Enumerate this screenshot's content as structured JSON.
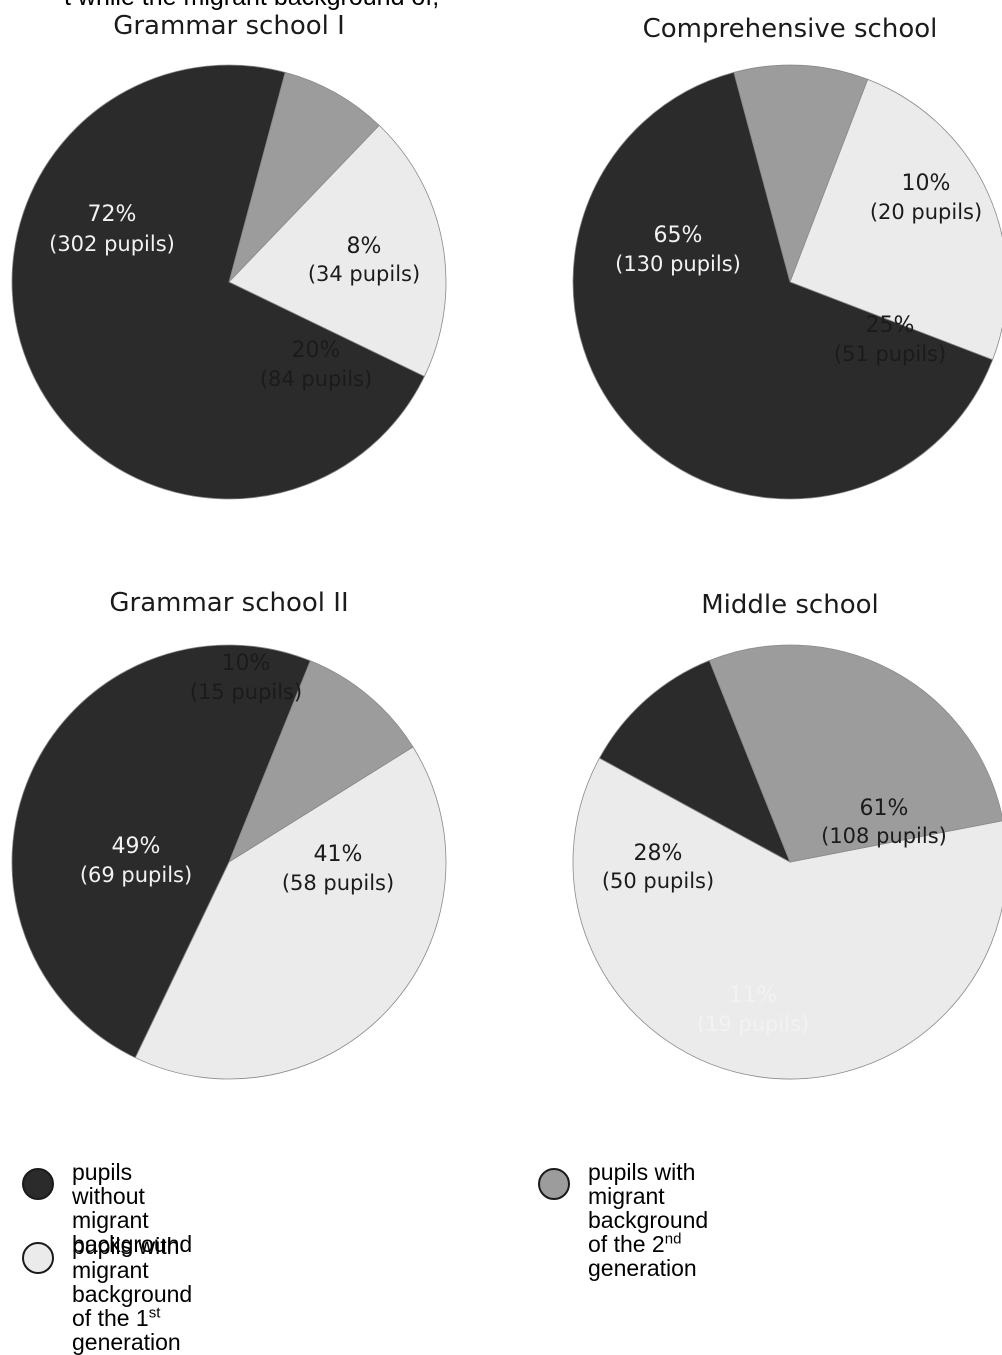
{
  "header_fragment": "t while the migrant background of,",
  "colors": {
    "without": "#2b2b2b",
    "first_gen": "#ebebeb",
    "second_gen": "#9c9c9c",
    "text_on_dark": "#f2f2f2",
    "text_on_light": "#1b1b1b"
  },
  "chart_data": [
    {
      "type": "pie",
      "title": "Grammar school I",
      "slices": [
        {
          "category": "second_gen",
          "percent": 8,
          "pct_label": "8%",
          "count_label": "(34 pupils)"
        },
        {
          "category": "first_gen",
          "percent": 20,
          "pct_label": "20%",
          "count_label": "(84 pupils)"
        },
        {
          "category": "without",
          "percent": 72,
          "pct_label": "72%",
          "count_label": "(302 pupils)"
        }
      ]
    },
    {
      "type": "pie",
      "title": "Comprehensive school",
      "slices": [
        {
          "category": "second_gen",
          "percent": 10,
          "pct_label": "10%",
          "count_label": "(20 pupils)"
        },
        {
          "category": "first_gen",
          "percent": 25,
          "pct_label": "25%",
          "count_label": "(51 pupils)"
        },
        {
          "category": "without",
          "percent": 65,
          "pct_label": "65%",
          "count_label": "(130 pupils)"
        }
      ]
    },
    {
      "type": "pie",
      "title": "Grammar school II",
      "slices": [
        {
          "category": "second_gen",
          "percent": 10,
          "pct_label": "10%",
          "count_label": "(15 pupils)"
        },
        {
          "category": "first_gen",
          "percent": 41,
          "pct_label": "41%",
          "count_label": "(58 pupils)"
        },
        {
          "category": "without",
          "percent": 49,
          "pct_label": "49%",
          "count_label": "(69 pupils)"
        }
      ]
    },
    {
      "type": "pie",
      "title": "Middle school",
      "slices": [
        {
          "category": "first_gen",
          "percent": 61,
          "pct_label": "61%",
          "count_label": "(108 pupils)"
        },
        {
          "category": "without",
          "percent": 11,
          "pct_label": "11%",
          "count_label": "(19 pupils)"
        },
        {
          "category": "second_gen",
          "percent": 28,
          "pct_label": "28%",
          "count_label": "(50 pupils)"
        }
      ]
    }
  ],
  "legend": {
    "without": {
      "line1": "pupils without",
      "line2": "migrant background"
    },
    "second_gen": {
      "line1": "pupils with migrant background",
      "line2_pre": "of the 2",
      "line2_sup": "nd",
      "line2_post": " generation"
    },
    "first_gen": {
      "line1": "pupils with migrant background",
      "line2_pre": "of the 1",
      "line2_sup": "st",
      "line2_post": " generation"
    }
  }
}
